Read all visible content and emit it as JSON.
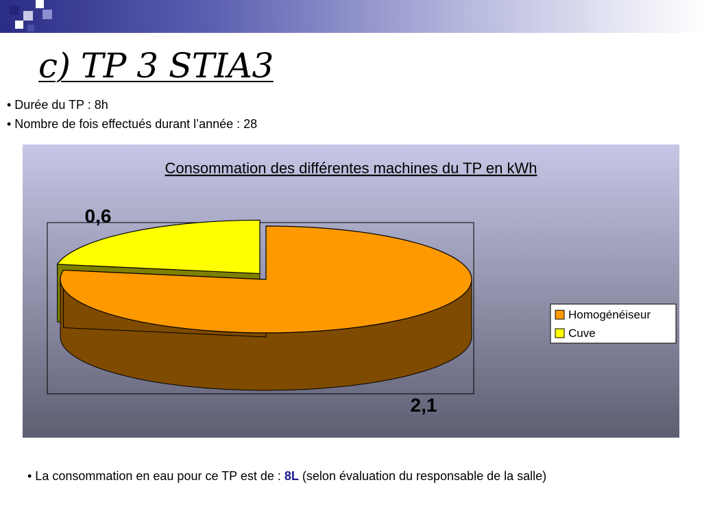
{
  "slide": {
    "title": "c) TP 3 STIA3",
    "bullets": [
      "• Durée du TP : 8h",
      "• Nombre de fois effectués durant l’année : 28"
    ],
    "bottom_note": {
      "prefix": "• La consommation en eau pour ce TP est de : ",
      "emphasis": "8L",
      "suffix": " (selon évaluation du responsable de la salle)"
    }
  },
  "theme": {
    "banner_dark": "#2b2c85",
    "chart_bg_top": "#c6c7e6",
    "chart_bg_bottom": "#5e5e72",
    "emphasis_color": "#1a1a8c"
  },
  "chart_data": {
    "type": "pie",
    "title": "Consommation des différentes machines du TP en kWh",
    "categories": [
      "Homogénéiseur",
      "Cuve"
    ],
    "values": [
      2.1,
      0.6
    ],
    "data_labels": [
      "2,1",
      "0,6"
    ],
    "colors": [
      "#ff9900",
      "#ffff00"
    ],
    "side_colors": [
      "#7f4b00",
      "#7f8000"
    ],
    "legend_position": "right",
    "three_d": true,
    "exploded": "Cuve"
  }
}
